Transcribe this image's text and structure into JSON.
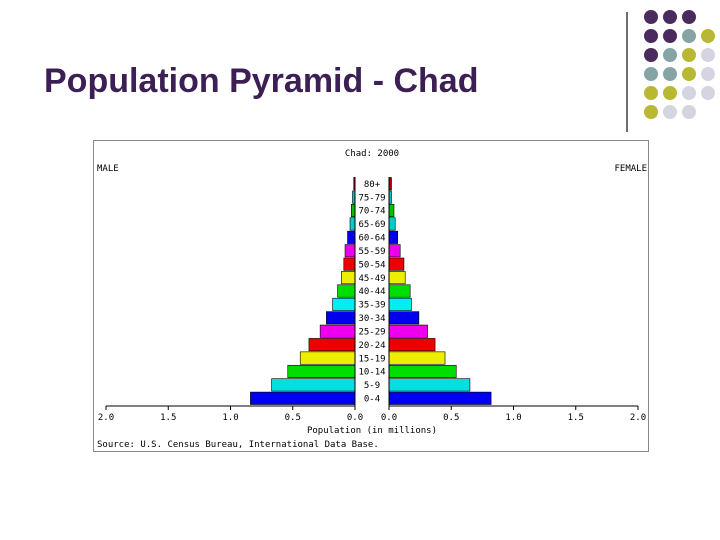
{
  "slide": {
    "title": "Population Pyramid - Chad",
    "accent_colors": [
      "#4b2a5e",
      "#86a4a6",
      "#b9b833",
      "#d5d5e2"
    ]
  },
  "chart_data": {
    "type": "bar",
    "orientation": "horizontal-pyramid",
    "title": "Chad: 2000",
    "left_label": "MALE",
    "right_label": "FEMALE",
    "xlabel": "Population (in millions)",
    "source": "Source: U.S. Census Bureau, International Data Base.",
    "xlim": [
      0,
      2.0
    ],
    "x_ticks_left": [
      "2.0",
      "1.5",
      "1.0",
      "0.5",
      "0.0"
    ],
    "x_ticks_right": [
      "0.0",
      "0.5",
      "1.0",
      "1.5",
      "2.0"
    ],
    "tick_values": [
      0,
      0.5,
      1.0,
      1.5,
      2.0
    ],
    "categories": [
      "80+",
      "75-79",
      "70-74",
      "65-69",
      "60-64",
      "55-59",
      "50-54",
      "45-49",
      "40-44",
      "35-39",
      "30-34",
      "25-29",
      "20-24",
      "15-19",
      "10-14",
      "5-9",
      "0-4"
    ],
    "series": [
      {
        "name": "MALE",
        "values": [
          0.01,
          0.02,
          0.03,
          0.04,
          0.06,
          0.08,
          0.09,
          0.11,
          0.14,
          0.18,
          0.23,
          0.28,
          0.37,
          0.44,
          0.54,
          0.67,
          0.84
        ]
      },
      {
        "name": "FEMALE",
        "values": [
          0.02,
          0.02,
          0.04,
          0.05,
          0.07,
          0.09,
          0.12,
          0.13,
          0.17,
          0.18,
          0.24,
          0.31,
          0.37,
          0.45,
          0.54,
          0.65,
          0.82
        ]
      }
    ],
    "band_colors": [
      "#b00000",
      "#00c0c0",
      "#00c000",
      "#00cccc",
      "#0000ee",
      "#ee00ee",
      "#ee0000",
      "#eeee00",
      "#00dd00",
      "#00eeee",
      "#0000ee",
      "#ee00ee",
      "#ee0000",
      "#eeee00",
      "#00dd00",
      "#00e0e0",
      "#0000ee"
    ],
    "grid": false,
    "legend": "none"
  }
}
